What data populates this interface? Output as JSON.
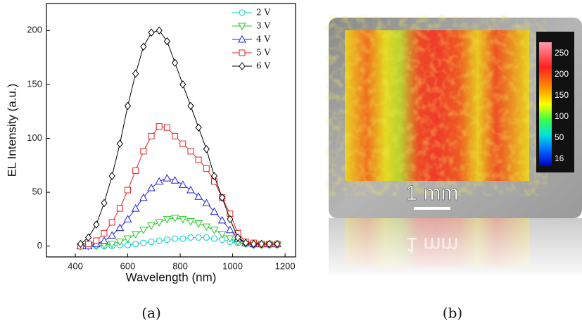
{
  "chart_data": {
    "type": "line",
    "xlabel": "Wavelength (nm)",
    "ylabel": "EL Intensity (a.u.)",
    "x": [
      420,
      450,
      480,
      510,
      540,
      570,
      600,
      630,
      660,
      690,
      720,
      750,
      780,
      810,
      840,
      870,
      900,
      930,
      960,
      990,
      1020,
      1050,
      1080,
      1110,
      1140,
      1170
    ],
    "series": [
      {
        "name": "2 V",
        "color": "#00cccc",
        "marker": "circle",
        "values": [
          0,
          0,
          0,
          0,
          0,
          1,
          1,
          2,
          3,
          4,
          5,
          6,
          7,
          7,
          8,
          8,
          8,
          7,
          6,
          4,
          3,
          2,
          1,
          1,
          1,
          1
        ]
      },
      {
        "name": "3 V",
        "color": "#22cc22",
        "marker": "triangle-down",
        "values": [
          0,
          0,
          0,
          1,
          2,
          4,
          7,
          11,
          15,
          19,
          22,
          25,
          26,
          25,
          23,
          21,
          18,
          15,
          11,
          7,
          4,
          2,
          1,
          1,
          1,
          1
        ]
      },
      {
        "name": "4 V",
        "color": "#2222dd",
        "marker": "triangle-up",
        "values": [
          0,
          0,
          2,
          5,
          10,
          17,
          25,
          35,
          45,
          54,
          60,
          63,
          61,
          57,
          52,
          46,
          40,
          32,
          24,
          15,
          7,
          3,
          2,
          2,
          2,
          2
        ]
      },
      {
        "name": "5 V",
        "color": "#e02020",
        "marker": "square",
        "values": [
          0,
          2,
          5,
          12,
          22,
          35,
          52,
          70,
          88,
          102,
          111,
          110,
          102,
          95,
          88,
          80,
          72,
          60,
          45,
          30,
          12,
          4,
          3,
          2,
          2,
          2
        ]
      },
      {
        "name": "6 V",
        "color": "#000000",
        "marker": "diamond",
        "values": [
          2,
          8,
          20,
          40,
          65,
          95,
          130,
          160,
          185,
          198,
          200,
          190,
          170,
          150,
          130,
          110,
          90,
          65,
          45,
          25,
          8,
          3,
          2,
          2,
          2,
          2
        ]
      }
    ],
    "xlim": [
      290,
      1240
    ],
    "ylim": [
      -10,
      225
    ],
    "xticks": [
      400,
      600,
      800,
      1000,
      1200
    ],
    "yticks": [
      0,
      50,
      100,
      150,
      200
    ],
    "grid": false,
    "legend": "upper right"
  },
  "captions": [
    "(a)",
    "(b)"
  ],
  "image_panel": {
    "scale_bar": "1 mm",
    "scale_bar_reflection": "1 mm",
    "colorbar": {
      "ticks": [
        "250",
        "200",
        "150",
        "100",
        "50",
        "16"
      ]
    }
  }
}
